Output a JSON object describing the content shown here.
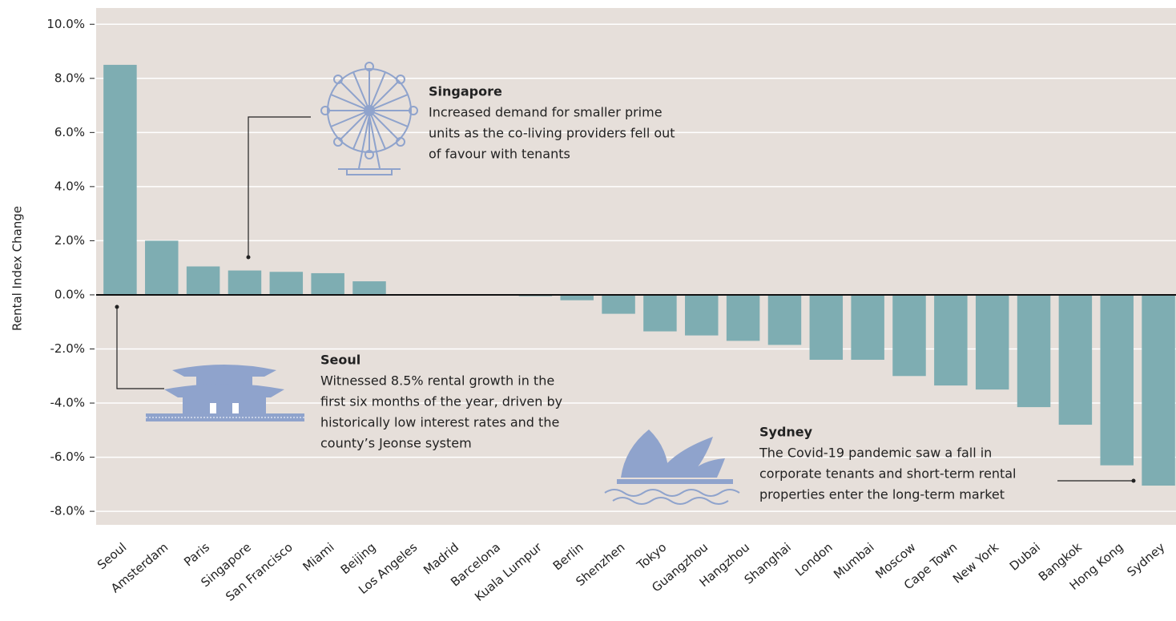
{
  "chart_data": {
    "type": "bar",
    "y_label": "Rental Index Change",
    "categories": [
      "Seoul",
      "Amsterdam",
      "Paris",
      "Singapore",
      "San Francisco",
      "Miami",
      "Beijing",
      "Los Angeles",
      "Madrid",
      "Barcelona",
      "Kuala Lumpur",
      "Berlin",
      "Shenzhen",
      "Tokyo",
      "Guangzhou",
      "Hangzhou",
      "Shanghai",
      "London",
      "Mumbai",
      "Moscow",
      "Cape Town",
      "New York",
      "Dubai",
      "Bangkok",
      "Hong Kong",
      "Sydney"
    ],
    "values": [
      8.5,
      2.0,
      1.05,
      0.9,
      0.85,
      0.8,
      0.5,
      0,
      0,
      0,
      -0.05,
      -0.2,
      -0.7,
      -1.35,
      -1.5,
      -1.7,
      -1.85,
      -2.4,
      -2.4,
      -3.0,
      -3.35,
      -3.5,
      -4.15,
      -4.8,
      -6.3,
      -7.05
    ],
    "color": "#7eadb2",
    "ylim": [
      -8.5,
      10.6
    ],
    "yticks": [
      {
        "value": -8,
        "label": "-8.0%"
      },
      {
        "value": -6,
        "label": "-6.0%"
      },
      {
        "value": -4,
        "label": "-4.0%"
      },
      {
        "value": -2,
        "label": "-2.0%"
      },
      {
        "value": 0,
        "label": "0.0%"
      },
      {
        "value": 2,
        "label": "2.0%"
      },
      {
        "value": 4,
        "label": "4.0%"
      },
      {
        "value": 6,
        "label": "6.0%"
      },
      {
        "value": 8,
        "label": "8.0%"
      },
      {
        "value": 10,
        "label": "10.0%"
      }
    ],
    "grid": true,
    "annotations": [
      {
        "title": "Singapore",
        "lines": [
          "Increased demand for smaller prime",
          "units as the co-living providers fell out",
          "of favour with tenants"
        ]
      },
      {
        "title": "Seoul",
        "lines": [
          "Witnessed 8.5% rental growth in the",
          "first six months of the year, driven by",
          "historically low interest rates and the",
          "county’s Jeonse system"
        ]
      },
      {
        "title": "Sydney",
        "lines": [
          "The Covid-19 pandemic saw a fall in",
          "corporate tenants and short-term rental",
          "properties enter the long-term market"
        ]
      }
    ]
  }
}
